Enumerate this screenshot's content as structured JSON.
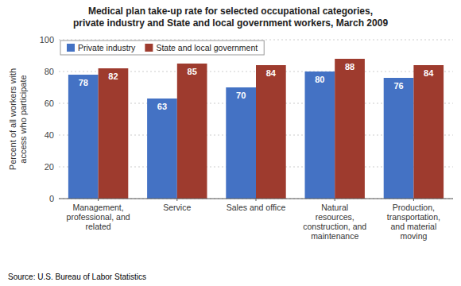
{
  "chart_data": {
    "type": "bar",
    "title": "Medical plan take-up rate for selected occupational categories,\nprivate industry and State and local government workers, March 2009",
    "categories": [
      "Management,\nprofessional, and\nrelated",
      "Service",
      "Sales and office",
      "Natural\nresources,\nconstruction, and\nmaintenance",
      "Production,\ntransportation,\nand material\nmoving"
    ],
    "series": [
      {
        "name": "Private industry",
        "color": "#4472C4",
        "values": [
          78,
          63,
          70,
          80,
          76
        ]
      },
      {
        "name": "State and local government",
        "color": "#9E3B2E",
        "values": [
          82,
          85,
          84,
          88,
          84
        ]
      }
    ],
    "ylabel": "Percent of all workers with\naccess who participate",
    "ylim": [
      0,
      100
    ],
    "yticks": [
      0,
      20,
      40,
      60,
      80,
      100
    ],
    "grid": true,
    "legend": "upper left",
    "data_labels": true,
    "source": "Source: U.S. Bureau of Labor Statistics"
  }
}
